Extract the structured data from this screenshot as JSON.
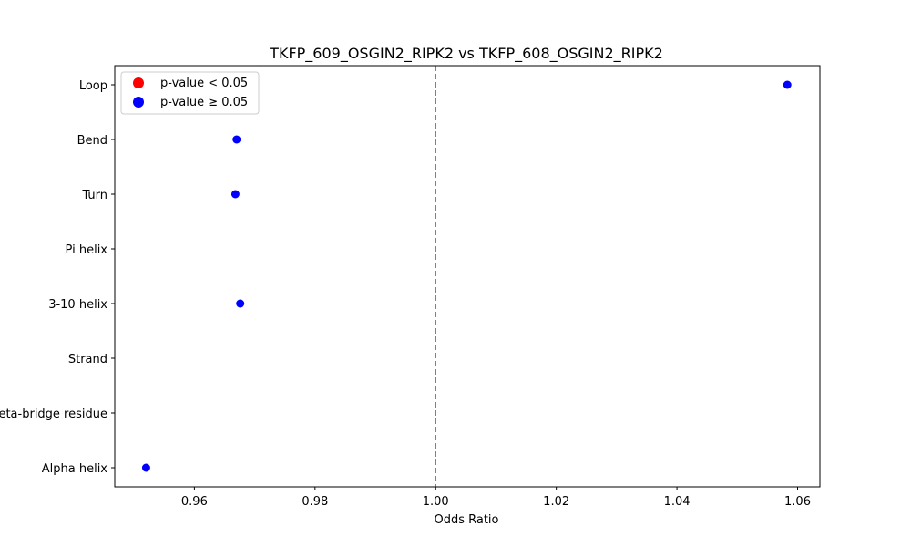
{
  "chart_data": {
    "type": "scatter",
    "title": "TKFP_609_OSGIN2_RIPK2 vs TKFP_608_OSGIN2_RIPK2",
    "xlabel": "Odds Ratio",
    "ylabel": "",
    "xlim": [
      0.9468,
      1.0637
    ],
    "x_ticks": [
      0.96,
      0.98,
      1.0,
      1.02,
      1.04,
      1.06
    ],
    "x_tick_labels": [
      "0.96",
      "0.98",
      "1.00",
      "1.02",
      "1.04",
      "1.06"
    ],
    "categories": [
      "Loop",
      "Bend",
      "Turn",
      "Pi helix",
      "3-10 helix",
      "Strand",
      "Beta-bridge residue",
      "Alpha helix"
    ],
    "reference_line": {
      "x": 1.0,
      "style": "dashed",
      "color": "#808080"
    },
    "points": [
      {
        "category": "Loop",
        "x": 1.0583,
        "significant": false
      },
      {
        "category": "Bend",
        "x": 0.967,
        "significant": false
      },
      {
        "category": "Turn",
        "x": 0.9668,
        "significant": false
      },
      {
        "category": "3-10 helix",
        "x": 0.9676,
        "significant": false
      },
      {
        "category": "Alpha helix",
        "x": 0.952,
        "significant": false
      }
    ],
    "legend": {
      "placement": "top-left",
      "entries": [
        {
          "label": "p-value < 0.05",
          "color": "#ff0000"
        },
        {
          "label": "p-value ≥ 0.05",
          "color": "#0000ff"
        }
      ]
    },
    "grid": false
  }
}
